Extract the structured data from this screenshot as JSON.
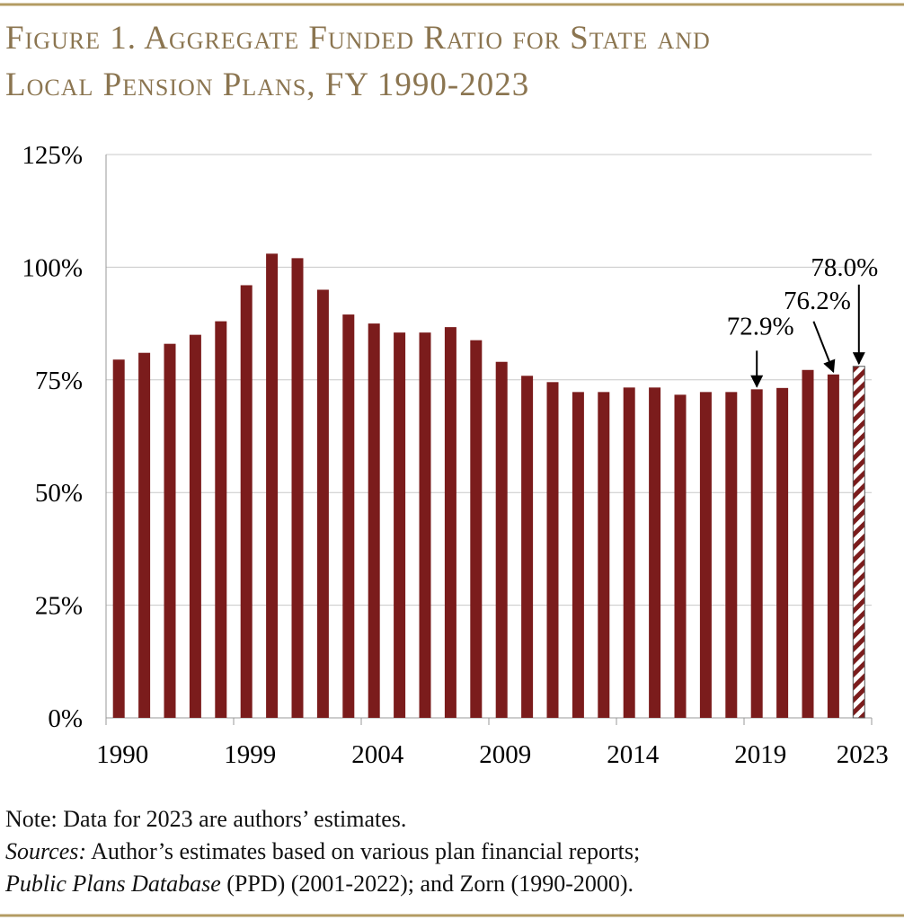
{
  "chart_data": {
    "type": "bar",
    "title": [
      "Figure 1. Aggregate Funded Ratio for State and",
      "Local Pension Plans, FY 1990-2023"
    ],
    "categories": [
      "1990",
      null,
      null,
      null,
      null,
      "1999",
      null,
      null,
      null,
      null,
      "2004",
      null,
      null,
      null,
      null,
      "2009",
      null,
      null,
      null,
      null,
      "2014",
      null,
      null,
      null,
      null,
      "2019",
      null,
      null,
      null,
      "2023"
    ],
    "values": [
      79.5,
      81,
      83,
      85,
      88,
      96,
      103,
      102,
      95,
      89.5,
      87.5,
      85.5,
      85.5,
      86.7,
      83.8,
      79,
      75.9,
      74.5,
      72.3,
      72.3,
      73.3,
      73.3,
      71.7,
      72.3,
      72.3,
      72.9,
      73.2,
      77.2,
      76.2,
      78.0
    ],
    "value_labels": [
      null,
      null,
      null,
      null,
      null,
      null,
      null,
      null,
      null,
      null,
      null,
      null,
      null,
      null,
      null,
      null,
      null,
      null,
      null,
      null,
      null,
      null,
      null,
      null,
      null,
      "72.9%",
      null,
      null,
      "76.2%",
      "78.0%"
    ],
    "color": "#7b1c1c",
    "hatched": [
      29
    ],
    "ylim": [
      0,
      125
    ],
    "yticks": [
      {
        "value": 0,
        "label": "0%"
      },
      {
        "value": 25,
        "label": "25%"
      },
      {
        "value": 50,
        "label": "50%"
      },
      {
        "value": 75,
        "label": "75%"
      },
      {
        "value": 100,
        "label": "100%"
      },
      {
        "value": 125,
        "label": "125%"
      }
    ],
    "grid": true
  },
  "notes": {
    "note": "Note: Data for 2023 are authors’ estimates.",
    "sources_label": "Sources:",
    "sources_text": " Author’s estimates based on various plan financial reports;",
    "ppd_label": "Public Plans Database",
    "ppd_text": " (PPD) (2001-2022); and Zorn (1990-2000)."
  }
}
